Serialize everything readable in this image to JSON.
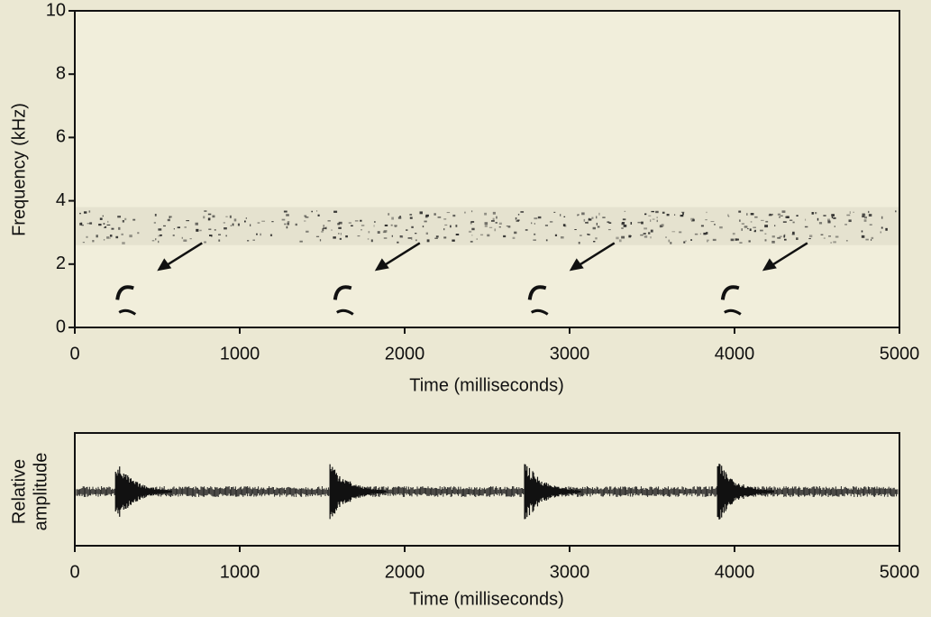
{
  "chart_data": [
    {
      "type": "spectrogram",
      "xlabel": "Time (milliseconds)",
      "ylabel": "Frequency (kHz)",
      "xlim": [
        0,
        5000
      ],
      "xticks": [
        0,
        1000,
        2000,
        3000,
        4000,
        5000
      ],
      "ylim": [
        0,
        10
      ],
      "yticks": [
        0,
        2,
        4,
        6,
        8,
        10
      ],
      "series": [
        {
          "x": [
            280,
            1600,
            2780,
            3950
          ],
          "values": [
            1.1,
            1.1,
            1.1,
            1.1
          ],
          "color": "#111111"
        }
      ]
    },
    {
      "type": "waveform",
      "xlabel": "Time (milliseconds)",
      "ylabel": [
        "Relative",
        "amplitude"
      ],
      "xlim": [
        0,
        5000
      ],
      "xticks": [
        0,
        1000,
        2000,
        3000,
        4000,
        5000
      ],
      "x": [
        280,
        1580,
        2760,
        3930
      ],
      "color": "#111111"
    }
  ]
}
